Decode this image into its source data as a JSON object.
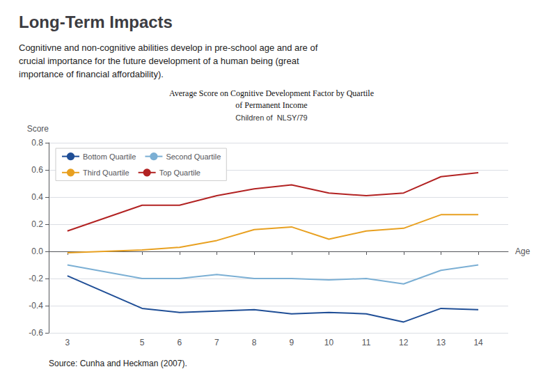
{
  "chart_data": {
    "type": "line",
    "title": "Long-Term Impacts",
    "subtitle": "Cognitivne and non-cognitive abilities develop in pre-school age and are of\ncrucial importance for the future development of a human being (great\nimportance of financial affordability).",
    "annotations": [
      "Average Score on Cognitive Development Factor by Quartile",
      "of Permanent Income",
      "Children of  NLSY/79",
      "Source: Cunha and Heckman (2007)."
    ],
    "x_label": "Age",
    "y_label": "Score",
    "x": [
      3,
      5,
      6,
      7,
      8,
      9,
      10,
      11,
      12,
      13,
      14
    ],
    "series": [
      {
        "name": "Bottom Quartile",
        "color": "#1f4e96",
        "values": [
          -0.18,
          -0.42,
          -0.45,
          -0.44,
          -0.43,
          -0.46,
          -0.45,
          -0.46,
          -0.52,
          -0.42,
          -0.43
        ]
      },
      {
        "name": "Second Quartile",
        "color": "#7bafd4",
        "values": [
          -0.1,
          -0.2,
          -0.2,
          -0.17,
          -0.2,
          -0.2,
          -0.21,
          -0.2,
          -0.24,
          -0.14,
          -0.1
        ]
      },
      {
        "name": "Third Quartile",
        "color": "#e8a020",
        "values": [
          -0.01,
          0.01,
          0.03,
          0.08,
          0.16,
          0.18,
          0.09,
          0.15,
          0.17,
          0.27,
          0.27
        ]
      },
      {
        "name": "Top Quartile",
        "color": "#b22222",
        "values": [
          0.15,
          0.34,
          0.34,
          0.41,
          0.46,
          0.49,
          0.43,
          0.41,
          0.43,
          0.55,
          0.58
        ]
      }
    ],
    "xlim": [
      2.5,
      14.8
    ],
    "xticks": [
      3,
      5,
      6,
      7,
      8,
      9,
      10,
      11,
      12,
      13,
      14
    ],
    "ylim": [
      -0.6,
      0.8
    ],
    "yticks": [
      -0.6,
      -0.4,
      -0.2,
      {
        "value": 0,
        "label": "0.0"
      },
      0.2,
      0.4,
      0.6,
      0.8
    ],
    "grid": "y",
    "legend": "upper left"
  }
}
